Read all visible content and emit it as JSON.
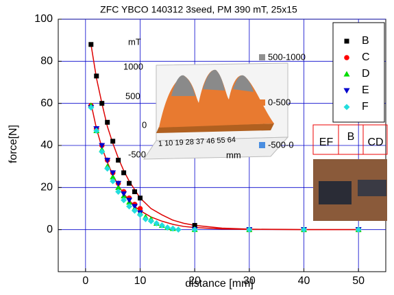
{
  "chart_data": {
    "type": "scatter",
    "title": "ZFC YBCO 140312 3seed, PM 390 mT, 25x15",
    "xlabel": "distance [mm]",
    "ylabel": "force[N]",
    "xlim": [
      -5,
      55
    ],
    "xticks": [
      0,
      10,
      20,
      30,
      40,
      50
    ],
    "ylim": [
      -20,
      100
    ],
    "yticks": [
      0,
      20,
      40,
      60,
      80,
      100
    ],
    "grid": true,
    "grid_color": "#0000cc",
    "legend": "upper right",
    "series": [
      {
        "name": "B",
        "color": "#000000",
        "marker": "square",
        "x": [
          1,
          2,
          3,
          4,
          5,
          6,
          7,
          8,
          9,
          10,
          20,
          30,
          40,
          50
        ],
        "values": [
          88,
          73,
          60,
          51,
          42,
          33,
          27,
          22,
          18,
          15,
          2,
          0,
          0,
          0
        ]
      },
      {
        "name": "C",
        "color": "#ff0000",
        "marker": "circle",
        "x": [
          1,
          2,
          3,
          4,
          5,
          6,
          7,
          8,
          9,
          10,
          20,
          30,
          40,
          50
        ],
        "values": [
          59,
          48,
          40,
          33,
          27,
          22,
          18,
          15,
          12,
          10,
          0,
          0,
          0,
          0
        ]
      },
      {
        "name": "D",
        "color": "#00dd00",
        "marker": "triangle",
        "x": [
          1,
          2,
          3,
          4,
          5,
          6,
          7,
          8,
          9,
          10,
          11,
          12,
          13,
          14,
          15,
          16,
          20,
          30,
          40,
          50
        ],
        "values": [
          59,
          47,
          38,
          30,
          25,
          20,
          16,
          13,
          10,
          8,
          6,
          5,
          3,
          2,
          1,
          0.5,
          0,
          0,
          0,
          0
        ]
      },
      {
        "name": "E",
        "color": "#0000cc",
        "marker": "triangle-down",
        "x": [
          1,
          2,
          3,
          4,
          5,
          6,
          7,
          8,
          9,
          10,
          20,
          30,
          40,
          50
        ],
        "values": [
          58,
          48,
          40,
          33,
          27,
          22,
          17,
          14,
          11,
          8,
          0,
          0,
          0,
          0
        ]
      },
      {
        "name": "F",
        "color": "#22dddd",
        "marker": "diamond",
        "x": [
          1,
          2,
          3,
          4,
          5,
          6,
          7,
          8,
          9,
          10,
          11,
          12,
          13,
          14,
          15,
          16,
          17,
          20,
          30,
          40,
          50
        ],
        "values": [
          58,
          47,
          37,
          29,
          23,
          18,
          14,
          11,
          9,
          7,
          5,
          4,
          3,
          2,
          1,
          0.5,
          0,
          0,
          0,
          0,
          0
        ]
      }
    ],
    "fits": [
      {
        "color": "#dd0000",
        "x": [
          1,
          2,
          3,
          4,
          5,
          6,
          7,
          8,
          9,
          10,
          12,
          14,
          16,
          18,
          20,
          25,
          30,
          40,
          50
        ],
        "values": [
          88,
          72,
          60,
          49,
          41,
          34,
          28,
          23,
          19,
          15,
          10,
          7,
          4.5,
          3,
          2,
          0.7,
          0.2,
          0,
          0
        ]
      },
      {
        "color": "#dd0000",
        "x": [
          1,
          2,
          3,
          4,
          5,
          6,
          7,
          8,
          9,
          10,
          12,
          14,
          16,
          18,
          20,
          25,
          30,
          40,
          50
        ],
        "values": [
          60,
          48,
          39,
          32,
          26,
          21,
          17,
          14,
          11,
          9,
          6,
          4,
          2.5,
          1.5,
          1,
          0.3,
          0.1,
          0,
          0
        ]
      }
    ]
  },
  "inset": {
    "unit": "mT",
    "zticks": [
      "1000",
      "500",
      "0",
      "-500"
    ],
    "x_ticks": "1 10 19 28 37 46 55 64",
    "x_unit": "mm",
    "legend": [
      {
        "label": "500-1000",
        "color": "#909090"
      },
      {
        "label": "0-500",
        "color": "#e87a30"
      },
      {
        "label": "-500-0",
        "color": "#4a8ee0"
      }
    ]
  },
  "photo_labels": [
    "EF",
    "B",
    "CD"
  ]
}
